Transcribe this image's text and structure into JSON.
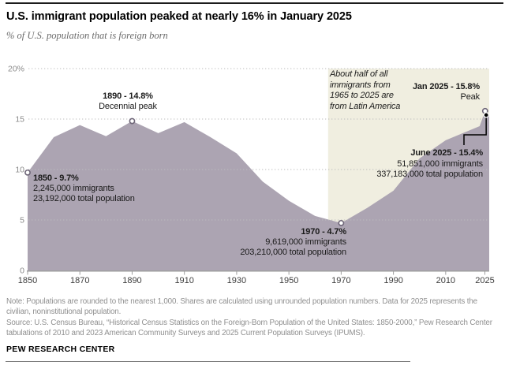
{
  "header": {
    "title": "U.S. immigrant population peaked at nearly 16% in January 2025",
    "subtitle": "% of U.S. population that is foreign born"
  },
  "chart_data": {
    "type": "area",
    "title": "U.S. immigrant population peaked at nearly 16% in January 2025",
    "ylabel": "% of U.S. population that is foreign born",
    "x": [
      1850,
      1860,
      1870,
      1880,
      1890,
      1900,
      1910,
      1920,
      1930,
      1940,
      1950,
      1960,
      1970,
      1980,
      1990,
      2000,
      2010,
      2023,
      2025.08,
      2025.5
    ],
    "values": [
      9.7,
      13.2,
      14.4,
      13.3,
      14.8,
      13.6,
      14.7,
      13.2,
      11.6,
      8.8,
      6.9,
      5.4,
      4.7,
      6.2,
      7.9,
      11.1,
      12.9,
      14.3,
      15.8,
      15.4
    ],
    "ylim": [
      0,
      20
    ],
    "grid": "dotted-horizontal",
    "yticks": [
      0,
      5,
      10,
      15,
      20
    ],
    "ytick_labels": [
      "0",
      "5",
      "10",
      "15",
      "20%"
    ],
    "xticks": [
      1850,
      1870,
      1890,
      1910,
      1930,
      1950,
      1970,
      1990,
      2010,
      2025
    ],
    "xtick_labels": [
      "1850",
      "1870",
      "1890",
      "1910",
      "1930",
      "1950",
      "1970",
      "1990",
      "2010",
      "2025"
    ],
    "area_color": "#aca4b2",
    "gridline_color": "#bdbdbd",
    "highlight_region": {
      "x_start": 1965,
      "x_end": 2025.5,
      "color": "#f0eee0"
    },
    "markers": [
      {
        "year": 1850,
        "value": 9.7,
        "style": "open"
      },
      {
        "year": 1890,
        "value": 14.8,
        "style": "open"
      },
      {
        "year": 1970,
        "value": 4.7,
        "style": "open"
      },
      {
        "year": 2025.08,
        "value": 15.8,
        "style": "open"
      },
      {
        "year": 2025.5,
        "value": 15.4,
        "style": "solid-black"
      }
    ],
    "annotations": {
      "a1850": {
        "title": "1850 - 9.7%",
        "line2": "2,245,000 immigrants",
        "line3": "23,192,000 total population"
      },
      "a1890": {
        "title": "1890 - 14.8%",
        "subtitle": "Decennial peak"
      },
      "a1970": {
        "title": "1970 - 4.7%",
        "line2": "9,619,000 immigrants",
        "line3": "203,210,000 total population"
      },
      "jan2025": {
        "title": "Jan 2025 - 15.8%",
        "subtitle": "Peak"
      },
      "june2025": {
        "title": "June 2025 - 15.4%",
        "line2": "51,851,000 immigrants",
        "line3": "337,183,000 total population"
      },
      "latin_america": [
        "About half of all",
        "immigrants from",
        "1965 to 2025 are",
        "from Latin America"
      ]
    }
  },
  "footer": {
    "note": "Note: Populations are rounded to the nearest 1,000. Shares are calculated using unrounded population numbers. Data for 2025 represents the civilian, noninstitutional population.",
    "source": "Source: U.S. Census Bureau, “Historical Census Statistics on the Foreign-Born Population of the United States: 1850-2000,” Pew Research Center tabulations of 2010 and 2023 American Community Surveys and 2025 Current Population Surveys (IPUMS).",
    "brand": "PEW RESEARCH CENTER"
  }
}
